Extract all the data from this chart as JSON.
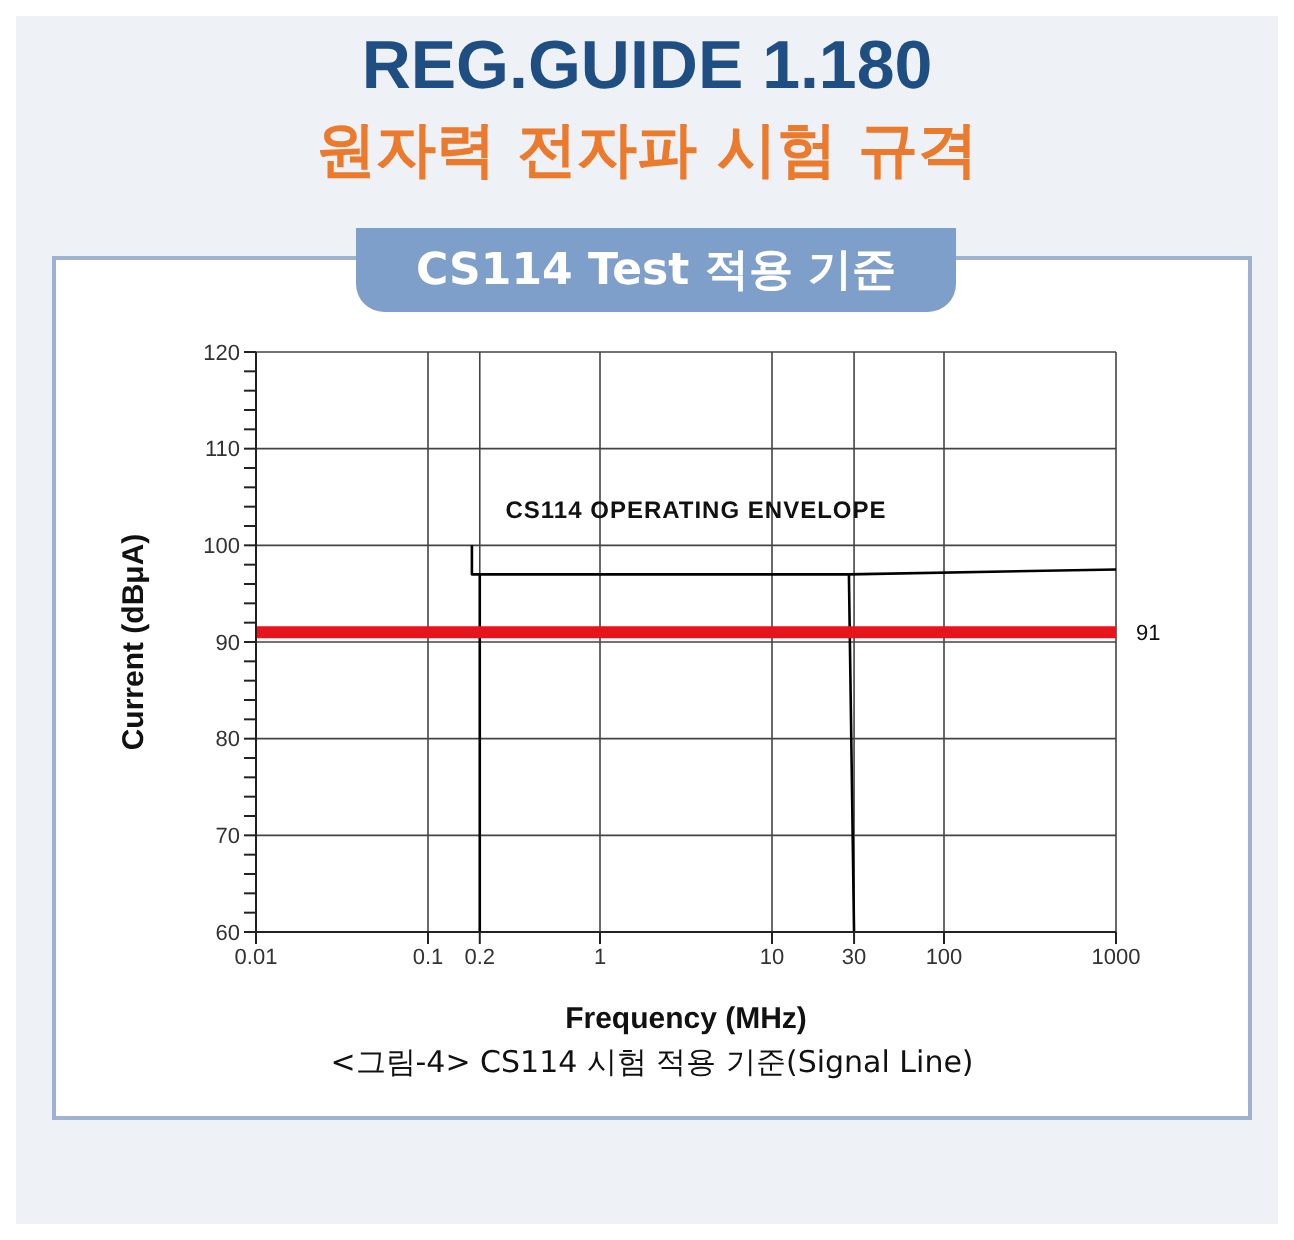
{
  "chart_data": {
    "type": "line",
    "title": "REG.GUIDE 1.180",
    "subtitle": "원자력 전자파 시험 규격",
    "xlabel": "Frequency (MHz)",
    "ylabel": "Current (dBμA)",
    "annotations": [
      "CS114 Test 적용 기준",
      "CS114 OPERATING ENVELOPE",
      "<그림-4> CS114 시험 적용 기준(Signal Line)"
    ],
    "log": "x",
    "grid": true,
    "marker": "none",
    "line_style": "solid",
    "xlim": [
      0.01,
      1000
    ],
    "xticks": [
      0.01,
      0.1,
      0.2,
      1,
      10,
      30,
      100,
      1000
    ],
    "ylim": [
      60,
      120
    ],
    "yticks": [
      60,
      {
        "value": 62,
        "label": null
      },
      {
        "value": 64,
        "label": null
      },
      {
        "value": 66,
        "label": null
      },
      {
        "value": 68,
        "label": null
      },
      70,
      {
        "value": 72,
        "label": null
      },
      {
        "value": 74,
        "label": null
      },
      {
        "value": 76,
        "label": null
      },
      {
        "value": 78,
        "label": null
      },
      80,
      {
        "value": 82,
        "label": null
      },
      {
        "value": 84,
        "label": null
      },
      {
        "value": 86,
        "label": null
      },
      {
        "value": 88,
        "label": null
      },
      90,
      {
        "value": 92,
        "label": null
      },
      {
        "value": 94,
        "label": null
      },
      {
        "value": 96,
        "label": null
      },
      {
        "value": 98,
        "label": null
      },
      100,
      {
        "value": 102,
        "label": null
      },
      {
        "value": 104,
        "label": null
      },
      {
        "value": 106,
        "label": null
      },
      {
        "value": 108,
        "label": null
      },
      110,
      {
        "value": 112,
        "label": null
      },
      {
        "value": 114,
        "label": null
      },
      {
        "value": 116,
        "label": null
      },
      {
        "value": 118,
        "label": null
      },
      120
    ],
    "series": [
      {
        "color": "#000000",
        "x": [
          0.18,
          0.18,
          0.2,
          0.2,
          0.2,
          28,
          30,
          28,
          1000
        ],
        "values": [
          100,
          97,
          97,
          60,
          97,
          97,
          60,
          97,
          97.5
        ]
      }
    ],
    "ref_lines": [
      {
        "axis": "y",
        "value": 91,
        "label": "91",
        "color": "#e8141c"
      }
    ]
  }
}
